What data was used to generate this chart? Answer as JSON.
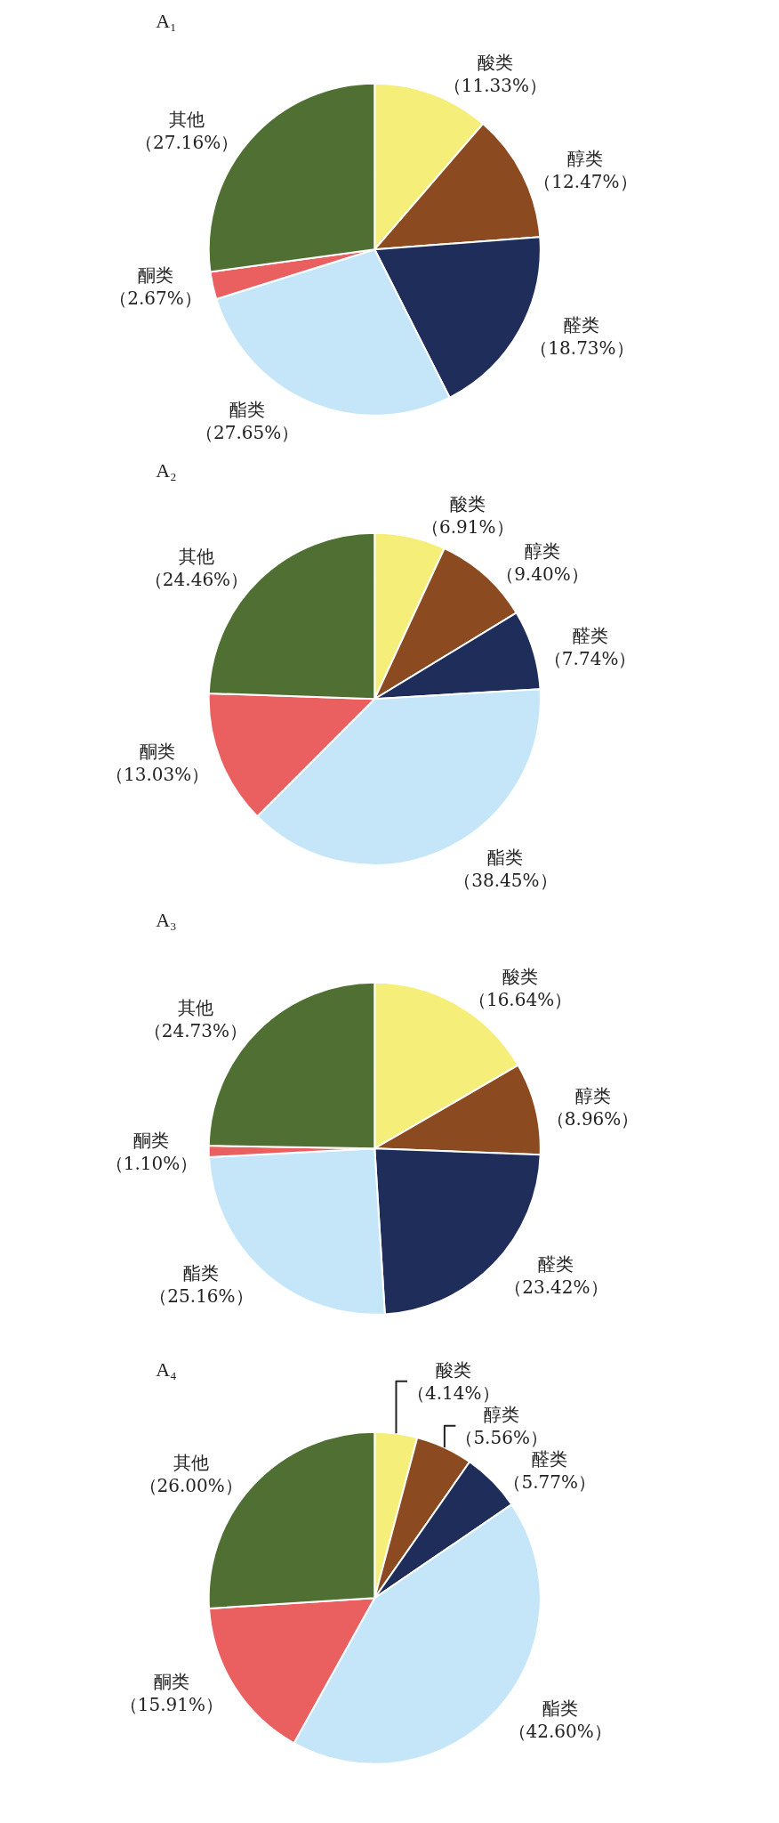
{
  "chart_data": [
    {
      "type": "pie",
      "title": "A₁",
      "categories": [
        "酸类",
        "醇类",
        "醛类",
        "酯类",
        "酮类",
        "其他"
      ],
      "values": [
        11.33,
        12.47,
        18.73,
        27.65,
        2.67,
        27.16
      ],
      "value_labels": [
        "（11.33%）",
        "（12.47%）",
        "（18.73%）",
        "（27.65%）",
        "（2.67%）",
        "（27.16%）"
      ],
      "colors": [
        "#f5ef7a",
        "#8b4a1f",
        "#1e2d5a",
        "#c5e6f8",
        "#ea5f5f",
        "#4f7032"
      ]
    },
    {
      "type": "pie",
      "title": "A₂",
      "categories": [
        "酸类",
        "醇类",
        "醛类",
        "酯类",
        "酮类",
        "其他"
      ],
      "values": [
        6.91,
        9.4,
        7.74,
        38.45,
        13.03,
        24.46
      ],
      "value_labels": [
        "（6.91%）",
        "（9.40%）",
        "（7.74%）",
        "（38.45%）",
        "（13.03%）",
        "（24.46%）"
      ],
      "colors": [
        "#f5ef7a",
        "#8b4a1f",
        "#1e2d5a",
        "#c5e6f8",
        "#ea5f5f",
        "#4f7032"
      ]
    },
    {
      "type": "pie",
      "title": "A₃",
      "categories": [
        "酸类",
        "醇类",
        "醛类",
        "酯类",
        "酮类",
        "其他"
      ],
      "values": [
        16.64,
        8.96,
        23.42,
        25.16,
        1.1,
        24.73
      ],
      "value_labels": [
        "（16.64%）",
        "（8.96%）",
        "（23.42%）",
        "（25.16%）",
        "（1.10%）",
        "（24.73%）"
      ],
      "colors": [
        "#f5ef7a",
        "#8b4a1f",
        "#1e2d5a",
        "#c5e6f8",
        "#ea5f5f",
        "#4f7032"
      ]
    },
    {
      "type": "pie",
      "title": "A₄",
      "categories": [
        "酸类",
        "醇类",
        "醛类",
        "酯类",
        "酮类",
        "其他"
      ],
      "values": [
        4.14,
        5.56,
        5.77,
        42.6,
        15.91,
        26.0
      ],
      "value_labels": [
        "（4.14%）",
        "（5.56%）",
        "（5.77%）",
        "（42.60%）",
        "（15.91%）",
        "（26.00%）"
      ],
      "colors": [
        "#f5ef7a",
        "#8b4a1f",
        "#1e2d5a",
        "#c5e6f8",
        "#ea5f5f",
        "#4f7032"
      ]
    }
  ]
}
